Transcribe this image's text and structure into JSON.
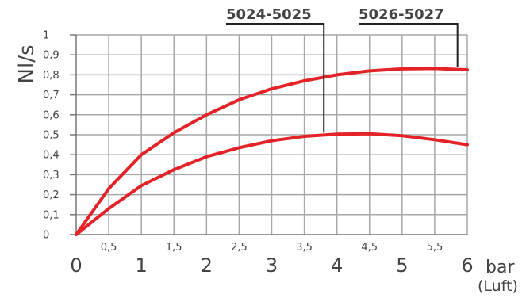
{
  "chart_data": {
    "type": "line",
    "ylabel": "Nl/s",
    "xlabel_unit": "bar",
    "xlabel_note": "(Luft)",
    "xlim": [
      0,
      6
    ],
    "ylim": [
      0,
      1
    ],
    "x_major_ticks": [
      "0",
      "1",
      "2",
      "3",
      "4",
      "5",
      "6"
    ],
    "x_minor_ticks": [
      "0,5",
      "1,5",
      "2,5",
      "3,5",
      "4,5",
      "5,5"
    ],
    "y_ticks": [
      "0",
      "0,1",
      "0,2",
      "0,3",
      "0,4",
      "0,5",
      "0,6",
      "0,7",
      "0,8",
      "0,9",
      "1"
    ],
    "grid": true,
    "line_color": "#e42329",
    "series": [
      {
        "name": "5024-5025",
        "x": [
          0,
          0.5,
          1,
          1.5,
          2,
          2.5,
          3,
          3.5,
          4,
          4.5,
          5,
          5.5,
          6
        ],
        "values": [
          0,
          0.13,
          0.245,
          0.325,
          0.39,
          0.435,
          0.47,
          0.492,
          0.503,
          0.505,
          0.495,
          0.475,
          0.45
        ],
        "label_x": 3.8
      },
      {
        "name": "5026-5027",
        "x": [
          0,
          0.5,
          1,
          1.5,
          2,
          2.5,
          3,
          3.5,
          4,
          4.5,
          5,
          5.5,
          6
        ],
        "values": [
          0,
          0.23,
          0.4,
          0.51,
          0.6,
          0.675,
          0.73,
          0.77,
          0.8,
          0.82,
          0.83,
          0.832,
          0.825
        ],
        "label_x": 5.85
      }
    ]
  }
}
